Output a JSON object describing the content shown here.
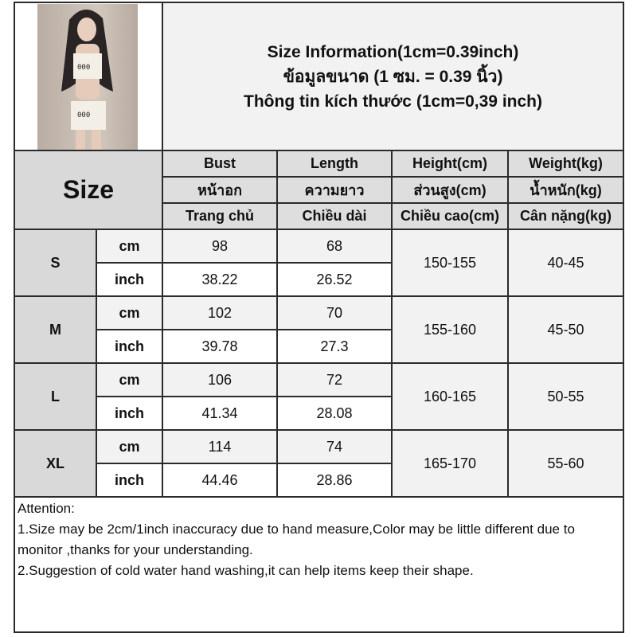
{
  "title_lines": [
    "Size Information(1cm=0.39inch)",
    "ข้อมูลขนาด (1 ซม. = 0.39 นิ้ว)",
    "Thông tin kích thước (1cm=0,39 inch)"
  ],
  "size_header": "Size",
  "columns": [
    {
      "en": "Bust",
      "th": "หน้าอก",
      "vi": "Trang chủ"
    },
    {
      "en": "Length",
      "th": "ความยาว",
      "vi": "Chiều dài"
    },
    {
      "en": "Height(cm)",
      "th": "ส่วนสูง(cm)",
      "vi": "Chiều cao(cm)"
    },
    {
      "en": "Weight(kg)",
      "th": "น้ำหนัก(kg)",
      "vi": "Cân nặng(kg)"
    }
  ],
  "units": {
    "cm": "cm",
    "inch": "inch"
  },
  "rows": [
    {
      "size": "S",
      "bust_cm": "98",
      "length_cm": "68",
      "bust_inch": "38.22",
      "length_inch": "26.52",
      "height": "150-155",
      "weight": "40-45"
    },
    {
      "size": "M",
      "bust_cm": "102",
      "length_cm": "70",
      "bust_inch": "39.78",
      "length_inch": "27.3",
      "height": "155-160",
      "weight": "45-50"
    },
    {
      "size": "L",
      "bust_cm": "106",
      "length_cm": "72",
      "bust_inch": "41.34",
      "length_inch": "28.08",
      "height": "160-165",
      "weight": "50-55"
    },
    {
      "size": "XL",
      "bust_cm": "114",
      "length_cm": "74",
      "bust_inch": "44.46",
      "length_inch": "28.86",
      "height": "165-170",
      "weight": "55-60"
    }
  ],
  "attention": {
    "heading": "Attention:",
    "notes": [
      "1.Size may be 2cm/1inch inaccuracy due to hand measure,Color may be little different due to monitor ,thanks for your understanding.",
      "2.Suggestion of cold water hand washing,it can help items keep their shape."
    ]
  },
  "colors": {
    "header_gray": "#d9d9d9",
    "light_gray": "#f2f2f2",
    "border": "#2b2b2b"
  }
}
